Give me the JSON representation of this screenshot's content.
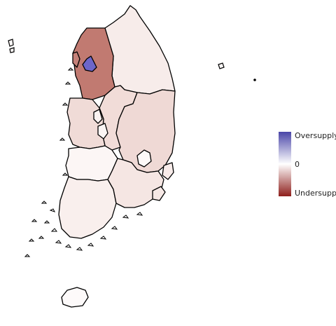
{
  "legend": {
    "top_label": "Oversupply",
    "mid_label": "0",
    "bottom_label": "Undersupply",
    "colors": {
      "high": "#4a46a8",
      "mid": "#ffffff",
      "low": "#8e1f1c"
    }
  },
  "regions": [
    {
      "id": "gyeonggi",
      "level": "strong-undersupply",
      "fill": "#c17a71"
    },
    {
      "id": "seoul",
      "level": "oversupply",
      "fill": "#6d66c9"
    },
    {
      "id": "incheon",
      "level": "undersupply",
      "fill": "#c58179"
    },
    {
      "id": "gangwon",
      "level": "near-zero",
      "fill": "#f7ecea"
    },
    {
      "id": "chungbuk",
      "level": "slight-undersupply",
      "fill": "#f1dcd8"
    },
    {
      "id": "chungnam",
      "level": "slight-undersupply",
      "fill": "#f0dbd7"
    },
    {
      "id": "sejong",
      "level": "near-zero",
      "fill": "#fbf3f2"
    },
    {
      "id": "daejeon",
      "level": "near-zero",
      "fill": "#fbf5f4"
    },
    {
      "id": "gyeongbuk",
      "level": "slight-undersupply",
      "fill": "#efd9d5"
    },
    {
      "id": "daegu",
      "level": "near-zero",
      "fill": "#fdf9f8"
    },
    {
      "id": "jeonbuk",
      "level": "near-zero",
      "fill": "#fcf6f5"
    },
    {
      "id": "gwangju",
      "level": "near-zero",
      "fill": "#faf2f1"
    },
    {
      "id": "jeonnam",
      "level": "near-zero",
      "fill": "#f9efed"
    },
    {
      "id": "gyeongnam",
      "level": "near-zero",
      "fill": "#f5e6e3"
    },
    {
      "id": "ulsan",
      "level": "near-zero",
      "fill": "#f8ecea"
    },
    {
      "id": "busan",
      "level": "near-zero",
      "fill": "#f6e8e5"
    },
    {
      "id": "jeju",
      "level": "near-zero",
      "fill": "#fdfafa"
    }
  ]
}
